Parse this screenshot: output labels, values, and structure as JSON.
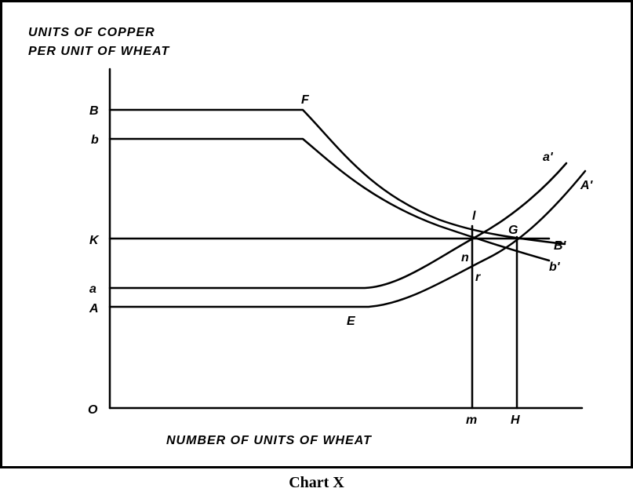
{
  "diagram": {
    "y_axis_title": [
      "UNITS OF COPPER",
      "PER UNIT OF WHEAT"
    ],
    "x_axis_title": "NUMBER OF UNITS OF WHEAT",
    "origin_label": "O",
    "y_tick_labels": {
      "B": "B",
      "b": "b",
      "K": "K",
      "a": "a",
      "A": "A"
    },
    "x_tick_labels": {
      "m": "m",
      "H": "H"
    },
    "curve_labels": {
      "F": "F",
      "E": "E",
      "B_prime": "B'",
      "b_prime": "b'",
      "a_prime": "a'",
      "A_prime": "A'"
    },
    "point_labels": {
      "G": "G",
      "l": "l",
      "n": "n",
      "r": "r"
    }
  },
  "caption": "Chart X"
}
